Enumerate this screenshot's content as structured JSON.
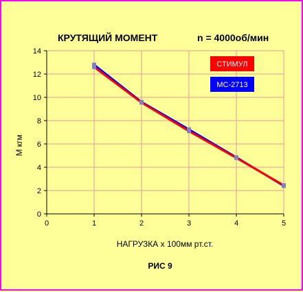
{
  "chart_data": {
    "type": "line",
    "title": "КРУТЯЩИЙ МОМЕНТ",
    "subtitle": "n = 4000об/мин",
    "xlabel": "НАГРУЗКА  х  100мм рт.ст.",
    "ylabel": "М  кгм",
    "caption": "РИС  9",
    "xlim": [
      0,
      5
    ],
    "ylim": [
      0,
      14
    ],
    "x_ticks": [
      0,
      1,
      2,
      3,
      4,
      5
    ],
    "y_ticks": [
      0,
      2,
      4,
      6,
      8,
      10,
      12,
      14
    ],
    "grid": true,
    "legend_position": "top-right",
    "x": [
      1,
      2,
      3,
      4,
      5
    ],
    "series": [
      {
        "name": "МС-2713",
        "color": "#0000ff",
        "values": [
          12.8,
          9.6,
          7.25,
          4.85,
          2.4
        ]
      },
      {
        "name": "СТИМУЛ",
        "color": "#ff0000",
        "values": [
          12.6,
          9.55,
          7.1,
          4.8,
          2.45
        ]
      }
    ],
    "colors": {
      "background": "#ffff99",
      "border": "#ff00ff",
      "grid": "#e89a9a",
      "marker": "#8080c0"
    }
  }
}
